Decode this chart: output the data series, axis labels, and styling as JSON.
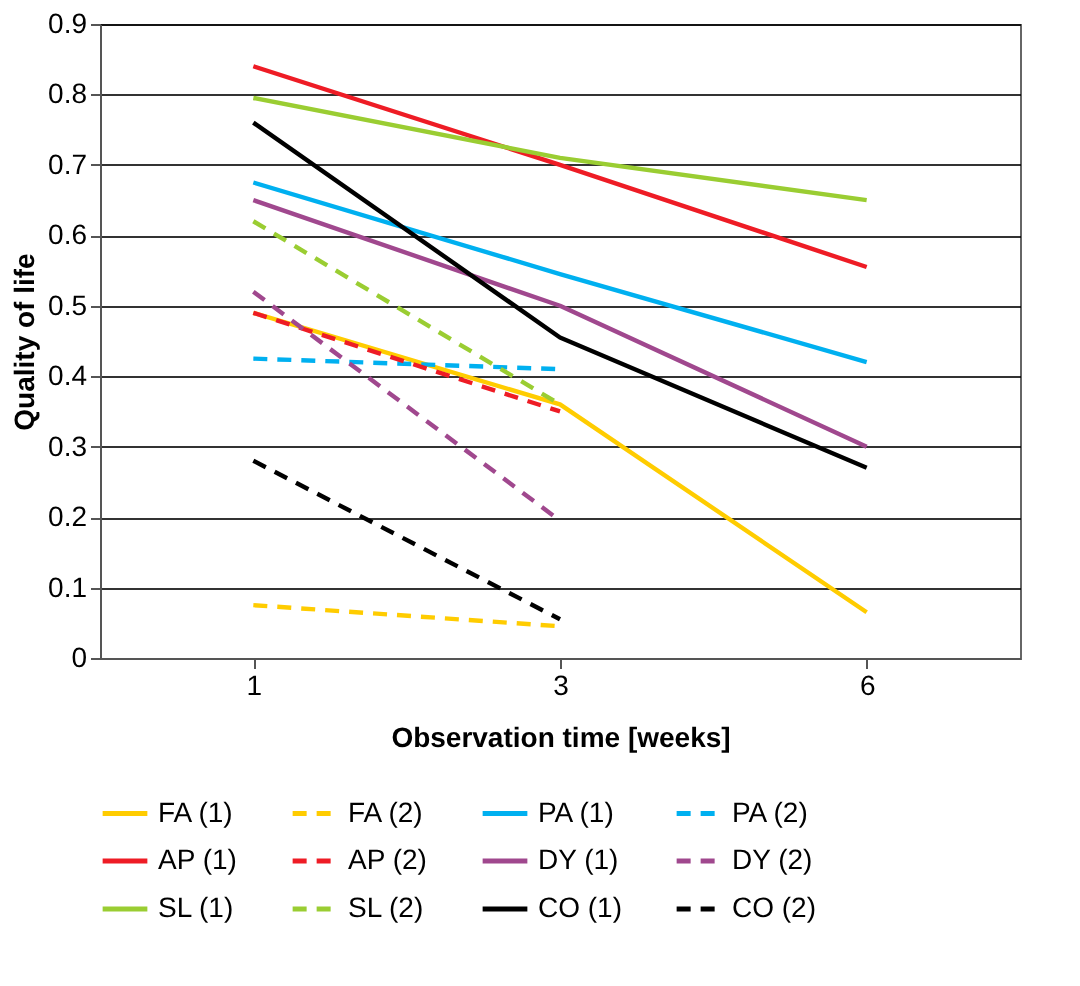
{
  "chart_data": {
    "type": "line",
    "xlabel": "Observation time [weeks]",
    "ylabel": "Quality of life",
    "categories": [
      "1",
      "3",
      "6"
    ],
    "ylim": [
      0,
      0.9
    ],
    "yticks": [
      0,
      0.1,
      0.2,
      0.3,
      0.4,
      0.5,
      0.6,
      0.7,
      0.8,
      0.9
    ],
    "grid": "y",
    "legend": "bottom",
    "marker": "none",
    "series": [
      {
        "name": "FA (1)",
        "color": "#ffcc00",
        "line_style": "solid",
        "values": [
          0.49,
          0.36,
          0.065
        ]
      },
      {
        "name": "FA (2)",
        "color": "#ffcc00",
        "line_style": "dashed",
        "values": [
          0.075,
          0.045,
          null
        ]
      },
      {
        "name": "PA (1)",
        "color": "#00b0f0",
        "line_style": "solid",
        "values": [
          0.675,
          0.545,
          0.42
        ]
      },
      {
        "name": "PA (2)",
        "color": "#00b0f0",
        "line_style": "dashed",
        "values": [
          0.425,
          0.41,
          null
        ]
      },
      {
        "name": "AP (1)",
        "color": "#ee1c25",
        "line_style": "solid",
        "values": [
          0.84,
          0.7,
          0.555
        ]
      },
      {
        "name": "AP (2)",
        "color": "#ee1c25",
        "line_style": "dashed",
        "values": [
          0.49,
          0.35,
          null
        ]
      },
      {
        "name": "DY (1)",
        "color": "#a0488e",
        "line_style": "solid",
        "values": [
          0.65,
          0.5,
          0.3
        ]
      },
      {
        "name": "DY (2)",
        "color": "#a0488e",
        "line_style": "dashed",
        "values": [
          0.52,
          0.195,
          null
        ]
      },
      {
        "name": "SL (1)",
        "color": "#9acd32",
        "line_style": "solid",
        "values": [
          0.795,
          0.71,
          0.65
        ]
      },
      {
        "name": "SL (2)",
        "color": "#9acd32",
        "line_style": "dashed",
        "values": [
          0.62,
          0.36,
          null
        ]
      },
      {
        "name": "CO (1)",
        "color": "#000000",
        "line_style": "solid",
        "values": [
          0.76,
          0.455,
          0.27
        ]
      },
      {
        "name": "CO (2)",
        "color": "#000000",
        "line_style": "dashed",
        "values": [
          0.28,
          0.055,
          null
        ]
      }
    ]
  }
}
